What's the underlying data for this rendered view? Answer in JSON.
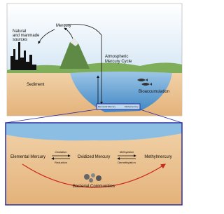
{
  "labels": {
    "mercury": "Mercury",
    "sources": [
      "Natural",
      "and manmade",
      "sources"
    ],
    "atmospheric": [
      "Atmospheric",
      "Mercury Cycle"
    ],
    "sediment": "Sediment",
    "bioaccumulation": "Bioaccumulation",
    "inset_left": "Elemental Mercury",
    "inset_right": "Methylmercury"
  },
  "detail": {
    "elemental": "Elemental Mercury",
    "oxidation": "Oxidation",
    "reduction": "Reduction",
    "oxidized": "Oxidized Mercury",
    "methylation": "Methylation",
    "demethylation": "Demethylation",
    "methyl": "Methylmercury",
    "bacteria": "Bacterial Communities"
  }
}
